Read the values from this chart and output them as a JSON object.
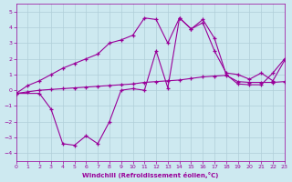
{
  "xlabel": "Windchill (Refroidissement éolien,°C)",
  "bg_color": "#cde9f0",
  "grid_color": "#b0ced8",
  "line_color": "#990099",
  "xlim": [
    0,
    23
  ],
  "ylim": [
    -4.5,
    5.5
  ],
  "xticks": [
    0,
    1,
    2,
    3,
    4,
    5,
    6,
    7,
    8,
    9,
    10,
    11,
    12,
    13,
    14,
    15,
    16,
    17,
    18,
    19,
    20,
    21,
    22,
    23
  ],
  "yticks": [
    -4,
    -3,
    -2,
    -1,
    0,
    1,
    2,
    3,
    4,
    5
  ],
  "line1_x": [
    0,
    1,
    2,
    3,
    4,
    5,
    6,
    7,
    8,
    9,
    10,
    11,
    12,
    13,
    14,
    15,
    16,
    17,
    18,
    19,
    20,
    21,
    22,
    23
  ],
  "line1_y": [
    -0.2,
    0.3,
    0.6,
    1.0,
    1.4,
    1.7,
    2.0,
    2.3,
    3.0,
    3.2,
    3.5,
    4.6,
    4.5,
    3.0,
    4.6,
    3.9,
    4.3,
    2.5,
    1.1,
    1.0,
    0.7,
    1.1,
    0.6,
    1.9
  ],
  "line2_x": [
    0,
    1,
    2,
    3,
    4,
    5,
    6,
    7,
    8,
    9,
    10,
    11,
    12,
    13,
    14,
    15,
    16,
    17,
    18,
    19,
    20,
    21,
    22,
    23
  ],
  "line2_y": [
    -0.2,
    -0.1,
    0.0,
    0.05,
    0.1,
    0.15,
    0.2,
    0.25,
    0.3,
    0.35,
    0.4,
    0.5,
    0.55,
    0.6,
    0.65,
    0.75,
    0.85,
    0.9,
    0.95,
    0.55,
    0.5,
    0.5,
    0.5,
    0.55
  ],
  "line3_x": [
    0,
    2,
    3,
    4,
    5,
    6,
    7,
    8,
    9,
    10,
    11,
    12,
    13,
    14,
    15,
    16,
    17,
    18,
    19,
    20,
    21,
    22,
    23
  ],
  "line3_y": [
    -0.2,
    -0.2,
    -1.2,
    -3.4,
    -3.5,
    -2.9,
    -3.4,
    -2.0,
    0.0,
    0.1,
    0.0,
    2.5,
    0.15,
    4.6,
    3.9,
    4.5,
    3.3,
    1.0,
    0.4,
    0.35,
    0.35,
    1.1,
    2.0
  ]
}
